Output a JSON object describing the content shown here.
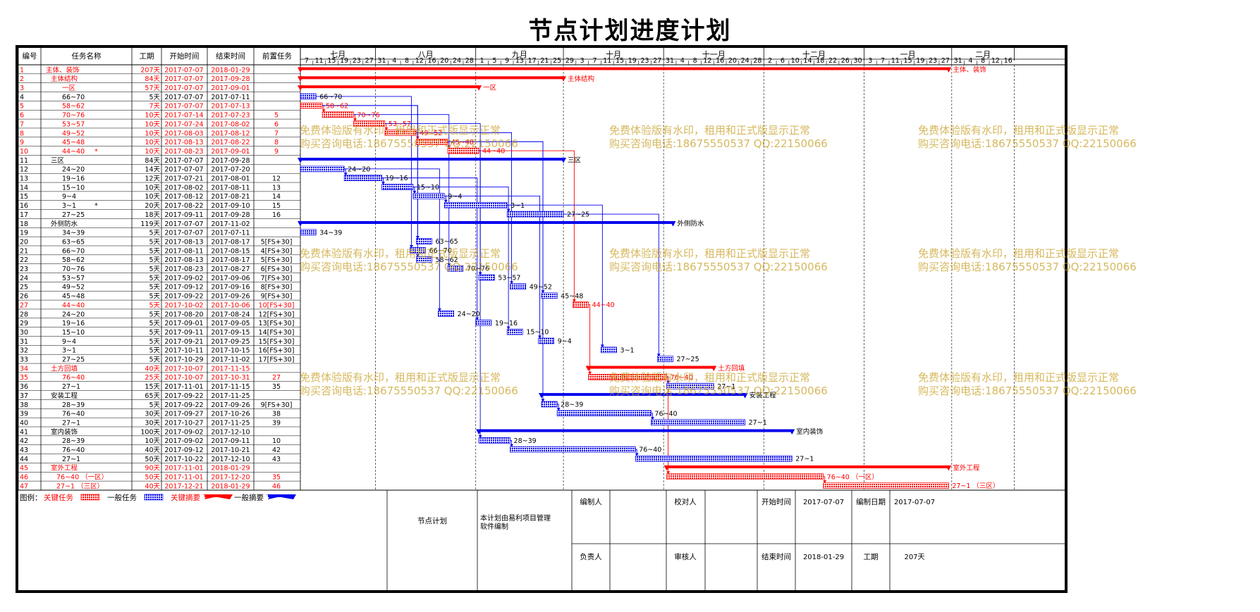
{
  "title": "节点计划进度计划",
  "columns": [
    "编号",
    "任务名称",
    "工期",
    "开始时间",
    "结束时间",
    "前置任务"
  ],
  "colors": {
    "critical": "#ff0000",
    "normal": "#0000ee",
    "critical_fill": "#f48b8b",
    "normal_fill": "#8c8cf4",
    "watermark": "#c8a028"
  },
  "months": [
    {
      "label": "七月",
      "days": [
        "7",
        "11",
        "15",
        "19",
        "23",
        "27"
      ]
    },
    {
      "label": "八月",
      "days": [
        "31",
        "4",
        "8",
        "12",
        "16",
        "20",
        "24",
        "28"
      ]
    },
    {
      "label": "九月",
      "days": [
        "1",
        "5",
        "9",
        "13",
        "17",
        "21",
        "25"
      ]
    },
    {
      "label": "十月",
      "days": [
        "29",
        "3",
        "7",
        "11",
        "15",
        "19",
        "23",
        "27"
      ]
    },
    {
      "label": "十一月",
      "days": [
        "31",
        "4",
        "8",
        "12",
        "16",
        "20",
        "24",
        "28"
      ]
    },
    {
      "label": "十二月",
      "days": [
        "2",
        "6",
        "10",
        "14",
        "18",
        "22",
        "26",
        "30"
      ]
    },
    {
      "label": "一月",
      "days": [
        "3",
        "7",
        "11",
        "15",
        "19",
        "23",
        "27"
      ]
    },
    {
      "label": "二月",
      "days": [
        "31",
        "4",
        "8",
        "12",
        "16"
      ]
    }
  ],
  "chart_data": {
    "type": "gantt",
    "title": "节点计划进度计划",
    "x_range": [
      "2017-07-07",
      "2018-02-19"
    ],
    "tasks": [
      {
        "id": "1",
        "name": "主体、装饰",
        "duration": "207天",
        "start": "2017-07-07",
        "end": "2018-01-29",
        "pred": "",
        "critical": true,
        "summary": true,
        "indent": 0,
        "label": "主体、装饰"
      },
      {
        "id": "2",
        "name": "主体结构",
        "duration": "84天",
        "start": "2017-07-07",
        "end": "2017-09-28",
        "pred": "",
        "critical": true,
        "summary": true,
        "indent": 1,
        "label": "主体结构"
      },
      {
        "id": "3",
        "name": "一区",
        "duration": "57天",
        "start": "2017-07-07",
        "end": "2017-09-01",
        "pred": "",
        "critical": true,
        "summary": true,
        "indent": 2,
        "label": "一区"
      },
      {
        "id": "4",
        "name": "66~70",
        "duration": "5天",
        "start": "2017-07-07",
        "end": "2017-07-11",
        "pred": "",
        "critical": false,
        "summary": false,
        "indent": 2,
        "label": "66~70"
      },
      {
        "id": "5",
        "name": "58~62",
        "duration": "7天",
        "start": "2017-07-07",
        "end": "2017-07-13",
        "pred": "",
        "critical": true,
        "summary": false,
        "indent": 2,
        "label": "58~62"
      },
      {
        "id": "6",
        "name": "70~76",
        "duration": "10天",
        "start": "2017-07-14",
        "end": "2017-07-23",
        "pred": "5",
        "critical": true,
        "summary": false,
        "indent": 2,
        "label": "70~76"
      },
      {
        "id": "7",
        "name": "53~57",
        "duration": "10天",
        "start": "2017-07-24",
        "end": "2017-08-02",
        "pred": "6",
        "critical": true,
        "summary": false,
        "indent": 2,
        "label": "53~57"
      },
      {
        "id": "8",
        "name": "49~52",
        "duration": "10天",
        "start": "2017-08-03",
        "end": "2017-08-12",
        "pred": "7",
        "critical": true,
        "summary": false,
        "indent": 2,
        "label": "49~52"
      },
      {
        "id": "9",
        "name": "45~48",
        "duration": "10天",
        "start": "2017-08-13",
        "end": "2017-08-22",
        "pred": "8",
        "critical": true,
        "summary": false,
        "indent": 2,
        "label": "45~48"
      },
      {
        "id": "10",
        "name": "44~40",
        "duration": "10天",
        "start": "2017-08-23",
        "end": "2017-09-01",
        "pred": "9",
        "critical": true,
        "summary": false,
        "indent": 2,
        "label": "44~40",
        "mark": "*"
      },
      {
        "id": "11",
        "name": "三区",
        "duration": "84天",
        "start": "2017-07-07",
        "end": "2017-09-28",
        "pred": "",
        "critical": false,
        "summary": true,
        "indent": 1,
        "label": "三区"
      },
      {
        "id": "12",
        "name": "24~20",
        "duration": "14天",
        "start": "2017-07-07",
        "end": "2017-07-20",
        "pred": "",
        "critical": false,
        "summary": false,
        "indent": 2,
        "label": "24~20"
      },
      {
        "id": "13",
        "name": "19~16",
        "duration": "12天",
        "start": "2017-07-21",
        "end": "2017-08-01",
        "pred": "12",
        "critical": false,
        "summary": false,
        "indent": 2,
        "label": "19~16"
      },
      {
        "id": "14",
        "name": "15~10",
        "duration": "10天",
        "start": "2017-08-02",
        "end": "2017-08-11",
        "pred": "13",
        "critical": false,
        "summary": false,
        "indent": 2,
        "label": "15~10"
      },
      {
        "id": "15",
        "name": "9~4",
        "duration": "10天",
        "start": "2017-08-12",
        "end": "2017-08-21",
        "pred": "14",
        "critical": false,
        "summary": false,
        "indent": 2,
        "label": "9~4"
      },
      {
        "id": "16",
        "name": "3~1",
        "duration": "20天",
        "start": "2017-08-22",
        "end": "2017-09-10",
        "pred": "15",
        "critical": false,
        "summary": false,
        "indent": 2,
        "label": "3~1",
        "mark": "*"
      },
      {
        "id": "17",
        "name": "27~25",
        "duration": "18天",
        "start": "2017-09-11",
        "end": "2017-09-28",
        "pred": "16",
        "critical": false,
        "summary": false,
        "indent": 2,
        "label": "27~25"
      },
      {
        "id": "18",
        "name": "外侧防水",
        "duration": "119天",
        "start": "2017-07-07",
        "end": "2017-11-02",
        "pred": "",
        "critical": false,
        "summary": true,
        "indent": 1,
        "label": "外侧防水"
      },
      {
        "id": "19",
        "name": "34~39",
        "duration": "5天",
        "start": "2017-07-07",
        "end": "2017-07-11",
        "pred": "",
        "critical": false,
        "summary": false,
        "indent": 2,
        "label": "34~39"
      },
      {
        "id": "20",
        "name": "63~65",
        "duration": "5天",
        "start": "2017-08-13",
        "end": "2017-08-17",
        "pred": "5[FS+30]",
        "critical": false,
        "summary": false,
        "indent": 2,
        "label": "63~65"
      },
      {
        "id": "21",
        "name": "66~70",
        "duration": "5天",
        "start": "2017-08-11",
        "end": "2017-08-15",
        "pred": "4[FS+30]",
        "critical": false,
        "summary": false,
        "indent": 2,
        "label": "66~70"
      },
      {
        "id": "22",
        "name": "58~62",
        "duration": "5天",
        "start": "2017-08-13",
        "end": "2017-08-17",
        "pred": "5[FS+30]",
        "critical": false,
        "summary": false,
        "indent": 2,
        "label": "58~62"
      },
      {
        "id": "23",
        "name": "70~76",
        "duration": "5天",
        "start": "2017-08-23",
        "end": "2017-08-27",
        "pred": "6[FS+30]",
        "critical": false,
        "summary": false,
        "indent": 2,
        "label": "70~76"
      },
      {
        "id": "24",
        "name": "53~57",
        "duration": "5天",
        "start": "2017-09-02",
        "end": "2017-09-06",
        "pred": "7[FS+30]",
        "critical": false,
        "summary": false,
        "indent": 2,
        "label": "53~57"
      },
      {
        "id": "25",
        "name": "49~52",
        "duration": "5天",
        "start": "2017-09-12",
        "end": "2017-09-16",
        "pred": "8[FS+30]",
        "critical": false,
        "summary": false,
        "indent": 2,
        "label": "49~52"
      },
      {
        "id": "26",
        "name": "45~48",
        "duration": "5天",
        "start": "2017-09-22",
        "end": "2017-09-26",
        "pred": "9[FS+30]",
        "critical": false,
        "summary": false,
        "indent": 2,
        "label": "45~48"
      },
      {
        "id": "27",
        "name": "44~40",
        "duration": "5天",
        "start": "2017-10-02",
        "end": "2017-10-06",
        "pred": "10[FS+30]",
        "critical": true,
        "summary": false,
        "indent": 2,
        "label": "44~40"
      },
      {
        "id": "28",
        "name": "24~20",
        "duration": "5天",
        "start": "2017-08-20",
        "end": "2017-08-24",
        "pred": "12[FS+30]",
        "critical": false,
        "summary": false,
        "indent": 2,
        "label": "24~20"
      },
      {
        "id": "29",
        "name": "19~16",
        "duration": "5天",
        "start": "2017-09-01",
        "end": "2017-09-05",
        "pred": "13[FS+30]",
        "critical": false,
        "summary": false,
        "indent": 2,
        "label": "19~16"
      },
      {
        "id": "30",
        "name": "15~10",
        "duration": "5天",
        "start": "2017-09-11",
        "end": "2017-09-15",
        "pred": "14[FS+30]",
        "critical": false,
        "summary": false,
        "indent": 2,
        "label": "15~10"
      },
      {
        "id": "31",
        "name": "9~4",
        "duration": "5天",
        "start": "2017-09-21",
        "end": "2017-09-25",
        "pred": "15[FS+30]",
        "critical": false,
        "summary": false,
        "indent": 2,
        "label": "9~4"
      },
      {
        "id": "32",
        "name": "3~1",
        "duration": "5天",
        "start": "2017-10-11",
        "end": "2017-10-15",
        "pred": "16[FS+30]",
        "critical": false,
        "summary": false,
        "indent": 2,
        "label": "3~1"
      },
      {
        "id": "33",
        "name": "27~25",
        "duration": "5天",
        "start": "2017-10-29",
        "end": "2017-11-02",
        "pred": "17[FS+30]",
        "critical": false,
        "summary": false,
        "indent": 2,
        "label": "27~25"
      },
      {
        "id": "34",
        "name": "土方回填",
        "duration": "40天",
        "start": "2017-10-07",
        "end": "2017-11-15",
        "pred": "",
        "critical": true,
        "summary": true,
        "indent": 1,
        "label": "土方回填"
      },
      {
        "id": "35",
        "name": "76~40",
        "duration": "25天",
        "start": "2017-10-07",
        "end": "2017-10-31",
        "pred": "27",
        "critical": true,
        "summary": false,
        "indent": 2,
        "label": "76~40"
      },
      {
        "id": "36",
        "name": "27~1",
        "duration": "15天",
        "start": "2017-11-01",
        "end": "2017-11-15",
        "pred": "35",
        "critical": false,
        "summary": false,
        "indent": 2,
        "label": "27~1"
      },
      {
        "id": "37",
        "name": "安装工程",
        "duration": "65天",
        "start": "2017-09-22",
        "end": "2017-11-25",
        "pred": "",
        "critical": false,
        "summary": true,
        "indent": 1,
        "label": "安装工程"
      },
      {
        "id": "38",
        "name": "28~39",
        "duration": "5天",
        "start": "2017-09-22",
        "end": "2017-09-26",
        "pred": "9[FS+30]",
        "critical": false,
        "summary": false,
        "indent": 2,
        "label": "28~39"
      },
      {
        "id": "39",
        "name": "76~40",
        "duration": "30天",
        "start": "2017-09-27",
        "end": "2017-10-26",
        "pred": "38",
        "critical": false,
        "summary": false,
        "indent": 2,
        "label": "76~40"
      },
      {
        "id": "40",
        "name": "27~1",
        "duration": "30天",
        "start": "2017-10-27",
        "end": "2017-11-25",
        "pred": "39",
        "critical": false,
        "summary": false,
        "indent": 2,
        "label": "27~1"
      },
      {
        "id": "41",
        "name": "室内装饰",
        "duration": "100天",
        "start": "2017-09-02",
        "end": "2017-12-10",
        "pred": "",
        "critical": false,
        "summary": true,
        "indent": 1,
        "label": "室内装饰"
      },
      {
        "id": "42",
        "name": "28~39",
        "duration": "10天",
        "start": "2017-09-02",
        "end": "2017-09-11",
        "pred": "10",
        "critical": false,
        "summary": false,
        "indent": 2,
        "label": "28~39"
      },
      {
        "id": "43",
        "name": "76~40",
        "duration": "40天",
        "start": "2017-09-12",
        "end": "2017-10-21",
        "pred": "42",
        "critical": false,
        "summary": false,
        "indent": 2,
        "label": "76~40"
      },
      {
        "id": "44",
        "name": "27~1",
        "duration": "50天",
        "start": "2017-10-22",
        "end": "2017-12-10",
        "pred": "43",
        "critical": false,
        "summary": false,
        "indent": 2,
        "label": "27~1"
      },
      {
        "id": "45",
        "name": "室外工程",
        "duration": "90天",
        "start": "2017-11-01",
        "end": "2018-01-29",
        "pred": "",
        "critical": true,
        "summary": true,
        "indent": 1,
        "label": "室外工程"
      },
      {
        "id": "46",
        "name": "76~40 （一区）",
        "duration": "50天",
        "start": "2017-11-01",
        "end": "2017-12-20",
        "pred": "35",
        "critical": true,
        "summary": false,
        "indent": 2,
        "label": "76~40 （一区）"
      },
      {
        "id": "47",
        "name": "27~1 （三区）",
        "duration": "40天",
        "start": "2017-12-21",
        "end": "2018-01-29",
        "pred": "46",
        "critical": true,
        "summary": false,
        "indent": 2,
        "label": "27~1 （三区）"
      }
    ]
  },
  "legend": {
    "title": "图例：",
    "critical_task": "关键任务",
    "normal_task": "一般任务",
    "critical_summary": "关键摘要",
    "normal_summary": "一般摘要"
  },
  "footer": {
    "plan_name": "节点计划",
    "note": "本计划由易利项目管理软件编制",
    "compiler_label": "编制人",
    "compiler": "",
    "owner_label": "负责人",
    "owner": "",
    "checker_label": "校对人",
    "checker": "",
    "reviewer_label": "审核人",
    "reviewer": "",
    "start_label": "开始时间",
    "start": "2017-07-07",
    "end_label": "结束时间",
    "end": "2018-01-29",
    "date_label": "编制日期",
    "date": "2017-07-07",
    "duration_label": "工期",
    "duration": "207天"
  },
  "watermark": {
    "line1": "免费体验版有水印，租用和正式版显示正常",
    "line2": "购买咨询电话:18675550537 QQ:22150066"
  }
}
